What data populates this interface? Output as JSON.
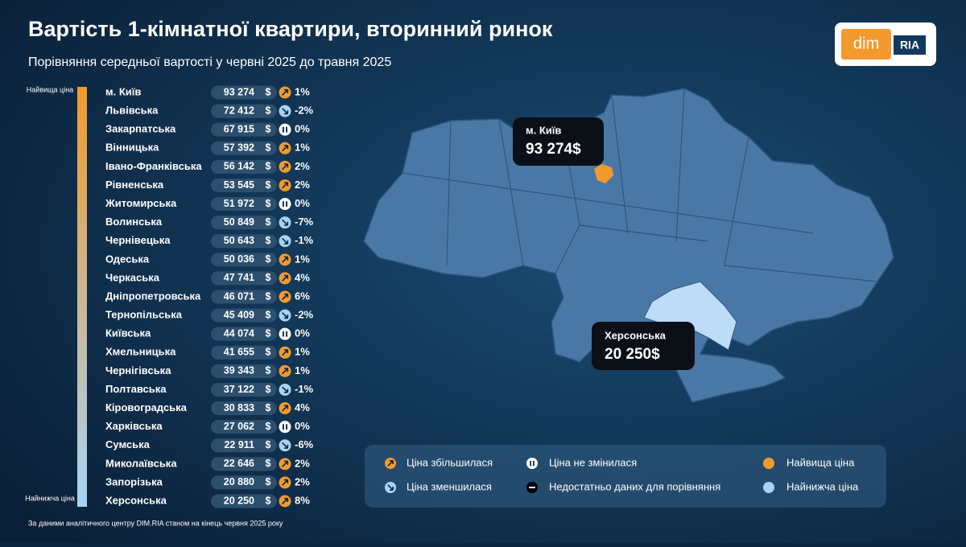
{
  "header": {
    "title": "Вартість 1-кімнатної квартири, вторинний ринок",
    "subtitle": "Порівняння середньої вартості у червні 2025 до травня 2025"
  },
  "logo": {
    "left": "dim",
    "right": "RIA"
  },
  "scale": {
    "top": "Найвища ціна",
    "bottom": "Найнижча ціна"
  },
  "table": {
    "currency": "$",
    "rows": [
      {
        "region": "м. Київ",
        "price": "93 274",
        "trend": "up",
        "change": "1%"
      },
      {
        "region": "Львівська",
        "price": "72 412",
        "trend": "down",
        "change": "-2%"
      },
      {
        "region": "Закарпатська",
        "price": "67 915",
        "trend": "same",
        "change": "0%"
      },
      {
        "region": "Вінницька",
        "price": "57 392",
        "trend": "up",
        "change": "1%"
      },
      {
        "region": "Івано-Франківська",
        "price": "56 142",
        "trend": "up",
        "change": "2%"
      },
      {
        "region": "Рівненська",
        "price": "53 545",
        "trend": "up",
        "change": "2%"
      },
      {
        "region": "Житомирська",
        "price": "51 972",
        "trend": "same",
        "change": "0%"
      },
      {
        "region": "Волинська",
        "price": "50 849",
        "trend": "down",
        "change": "-7%"
      },
      {
        "region": "Чернівецька",
        "price": "50 643",
        "trend": "down",
        "change": "-1%"
      },
      {
        "region": "Одеська",
        "price": "50 036",
        "trend": "up",
        "change": "1%"
      },
      {
        "region": "Черкаська",
        "price": "47 741",
        "trend": "up",
        "change": "4%"
      },
      {
        "region": "Дніпропетровська",
        "price": "46 071",
        "trend": "up",
        "change": "6%"
      },
      {
        "region": "Тернопільська",
        "price": "45 409",
        "trend": "down",
        "change": "-2%"
      },
      {
        "region": "Київська",
        "price": "44 074",
        "trend": "same",
        "change": "0%"
      },
      {
        "region": "Хмельницька",
        "price": "41 655",
        "trend": "up",
        "change": "1%"
      },
      {
        "region": "Чернігівська",
        "price": "39 343",
        "trend": "up",
        "change": "1%"
      },
      {
        "region": "Полтавська",
        "price": "37 122",
        "trend": "down",
        "change": "-1%"
      },
      {
        "region": "Кіровоградська",
        "price": "30 833",
        "trend": "up",
        "change": "4%"
      },
      {
        "region": "Харківська",
        "price": "27 062",
        "trend": "same",
        "change": "0%"
      },
      {
        "region": "Сумська",
        "price": "22 911",
        "trend": "down",
        "change": "-6%"
      },
      {
        "region": "Миколаївська",
        "price": "22 646",
        "trend": "up",
        "change": "2%"
      },
      {
        "region": "Запорізька",
        "price": "20 880",
        "trend": "up",
        "change": "2%"
      },
      {
        "region": "Херсонська",
        "price": "20 250",
        "trend": "up",
        "change": "8%"
      }
    ]
  },
  "callouts": [
    {
      "region": "м. Київ",
      "price": "93 274$"
    },
    {
      "region": "Херсонська",
      "price": "20 250$"
    }
  ],
  "legend": {
    "up": "Ціна збільшилася",
    "down": "Ціна зменшилася",
    "same": "Ціна не змінилася",
    "none": "Недостатньо даних для порівняння",
    "highest": "Найвища ціна",
    "lowest": "Найнижча ціна"
  },
  "footer": "За даними аналітичного центру DIM.RIA станом на кінець червня 2025 року"
}
